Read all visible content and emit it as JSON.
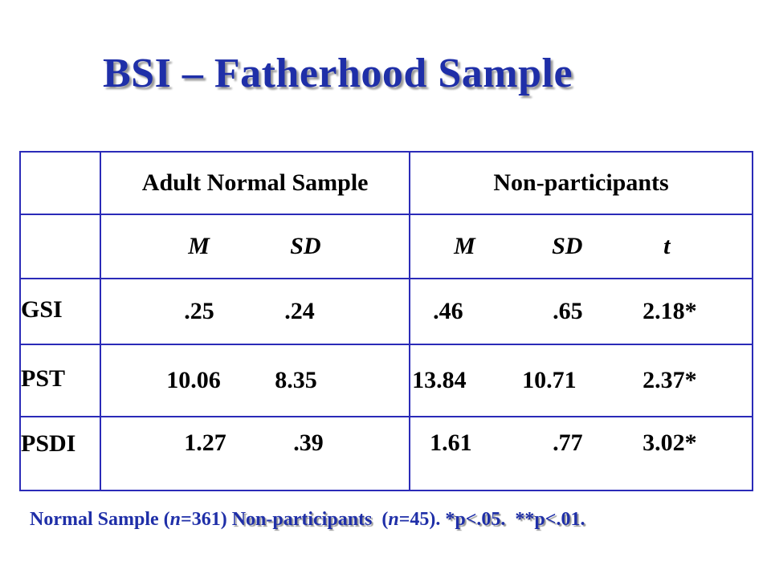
{
  "title": "BSI – Fatherhood Sample",
  "table": {
    "group_headers": [
      "Adult Normal Sample",
      "Non-participants"
    ],
    "sub_headers": {
      "normal": [
        "M",
        "SD"
      ],
      "nonpart": [
        "M",
        "SD",
        "t"
      ]
    },
    "rows": [
      {
        "label": "GSI",
        "normal_m": ".25",
        "normal_sd": ".24",
        "np_m": ".46",
        "np_sd": ".65",
        "t": "2.18*"
      },
      {
        "label": "PST",
        "normal_m": "10.06",
        "normal_sd": "8.35",
        "np_m": "13.84",
        "np_sd": "10.71",
        "t": "2.37*"
      },
      {
        "label": "PSDI",
        "normal_m": "1.27",
        "normal_sd": ".39",
        "np_m": "1.61",
        "np_sd": ".77",
        "t": "3.02*"
      }
    ]
  },
  "footnote": {
    "part1": "Normal Sample (",
    "n_symbol_1": "n",
    "part2": "=361) ",
    "part3": "Non-participants",
    "part4": "  (",
    "n_symbol_2": "n",
    "part5": "=45). ",
    "part6": "*p<.05.  **p<.01."
  },
  "colors": {
    "title": "#1f2fa8",
    "table_border": "#2b2bb8",
    "footnote": "#1f2fa8"
  }
}
